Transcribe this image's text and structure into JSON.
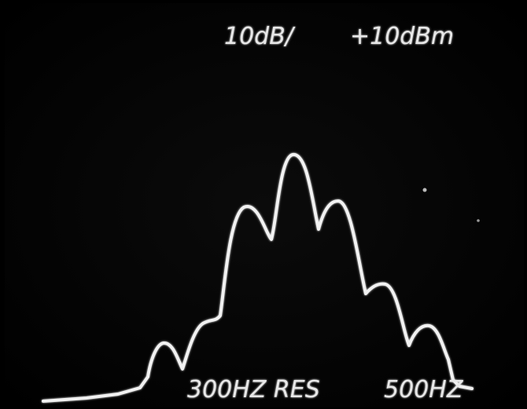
{
  "screen": {
    "scale_label": "10dB/",
    "reference_label": "+10dBm",
    "resolution_label": "300HZ RES",
    "span_label": "500HZ"
  }
}
